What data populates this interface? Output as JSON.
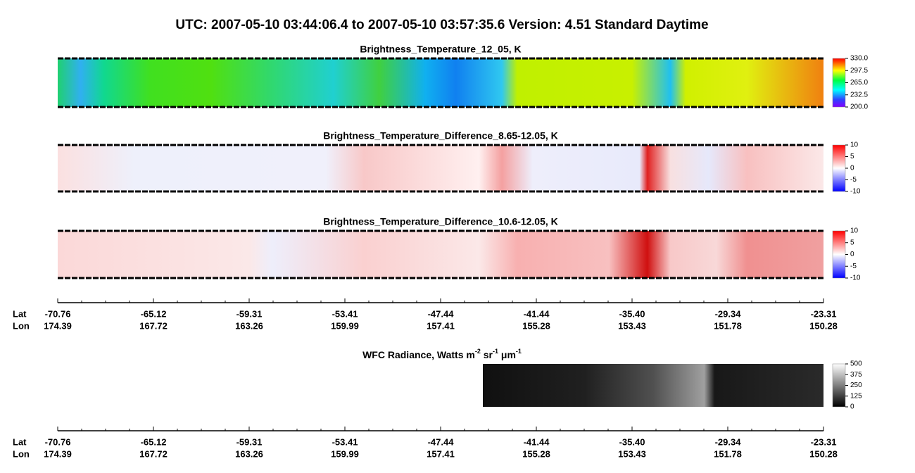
{
  "title": "UTC:  2007-05-10   03:44:06.4  to  2007-05-10   03:57:35.6    Version: 4.51  Standard Daytime",
  "panels": [
    {
      "title": "Brightness_Temperature_12_05, K",
      "colorbar": {
        "lim": [
          200,
          330
        ],
        "ticks": [
          {
            "value": 330,
            "label": "330.0"
          },
          {
            "value": 297.5,
            "label": "297.5"
          },
          {
            "value": 265,
            "label": "265.0"
          },
          {
            "value": 232.5,
            "label": "232.5"
          },
          {
            "value": 200,
            "label": "200.0"
          }
        ]
      }
    },
    {
      "title": "Brightness_Temperature_Difference_8.65-12.05, K",
      "colorbar": {
        "lim": [
          -10,
          10
        ],
        "ticks": [
          10,
          5,
          0,
          -5,
          -10
        ]
      }
    },
    {
      "title": "Brightness_Temperature_Difference_10.6-12.05, K",
      "colorbar": {
        "lim": [
          -10,
          10
        ],
        "ticks": [
          10,
          5,
          0,
          -5,
          -10
        ]
      }
    }
  ],
  "axis": {
    "lat_label": "Lat",
    "lon_label": "Lon",
    "lat": [
      "-70.76",
      "-65.12",
      "-59.31",
      "-53.41",
      "-47.44",
      "-41.44",
      "-35.40",
      "-29.34",
      "-23.31"
    ],
    "lon": [
      "174.39",
      "167.72",
      "163.26",
      "159.99",
      "157.41",
      "155.28",
      "153.43",
      "151.78",
      "150.28"
    ]
  },
  "wfc": {
    "title": [
      "WFC Radiance, Watts m",
      "-2",
      " sr",
      "-1",
      " μm",
      "-1"
    ],
    "colorbar": {
      "lim": [
        0,
        500
      ],
      "ticks": [
        500,
        375,
        250,
        125,
        0
      ]
    }
  }
}
